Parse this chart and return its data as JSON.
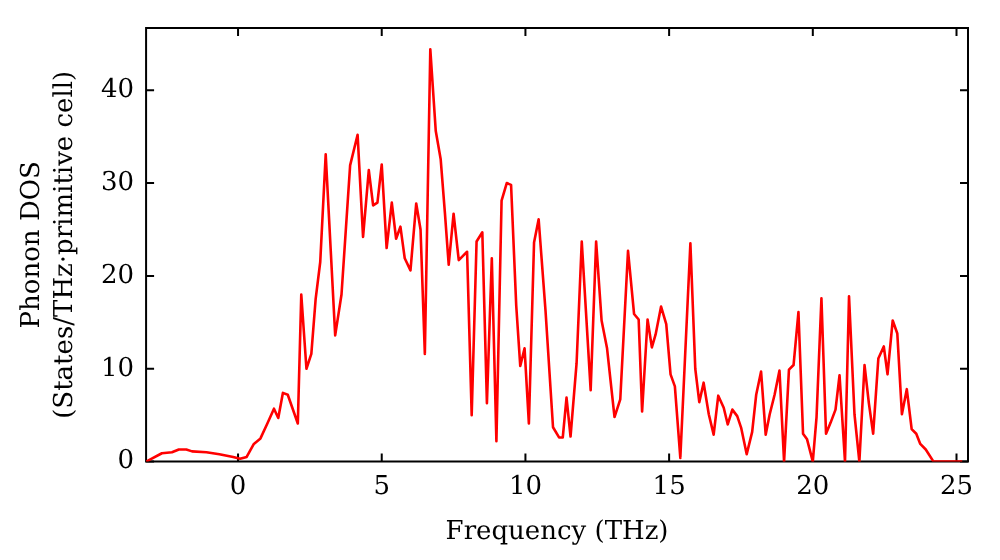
{
  "chart_data": {
    "type": "line",
    "xlabel": "Frequency (THz)",
    "ylabel": "Phonon DOS\n(States/THz·primitive cell)",
    "xlim": [
      -3.2,
      25.4
    ],
    "ylim": [
      0,
      46.7
    ],
    "xticks": [
      0,
      5,
      10,
      15,
      20,
      25
    ],
    "yticks": [
      0,
      10,
      20,
      30,
      40
    ],
    "grid": false,
    "legend": false,
    "marker": "none",
    "line_style": "solid",
    "series": [
      {
        "color": "#ff0000",
        "x": [
          -3.2,
          -2.65,
          -2.3,
          -2.06,
          -1.8,
          -1.6,
          -1.1,
          -0.65,
          -0.17,
          0.07,
          0.3,
          0.55,
          0.78,
          1.02,
          1.25,
          1.4,
          1.56,
          1.73,
          2.08,
          2.2,
          2.38,
          2.55,
          2.7,
          2.86,
          3.05,
          3.38,
          3.6,
          3.9,
          4.16,
          4.35,
          4.55,
          4.7,
          4.85,
          5.0,
          5.17,
          5.35,
          5.5,
          5.65,
          5.8,
          6.0,
          6.2,
          6.35,
          6.5,
          6.69,
          6.88,
          7.05,
          7.2,
          7.33,
          7.5,
          7.68,
          7.97,
          8.13,
          8.3,
          8.5,
          8.66,
          8.83,
          8.99,
          9.17,
          9.35,
          9.5,
          9.68,
          9.82,
          9.97,
          10.12,
          10.3,
          10.46,
          10.7,
          10.96,
          11.17,
          11.3,
          11.43,
          11.57,
          11.78,
          11.96,
          12.27,
          12.46,
          12.65,
          12.84,
          13.1,
          13.3,
          13.57,
          13.78,
          13.94,
          14.06,
          14.25,
          14.4,
          14.53,
          14.72,
          14.9,
          15.05,
          15.2,
          15.39,
          15.74,
          15.91,
          16.05,
          16.2,
          16.38,
          16.55,
          16.71,
          16.9,
          17.04,
          17.2,
          17.37,
          17.51,
          17.7,
          17.89,
          18.03,
          18.2,
          18.36,
          18.5,
          18.67,
          18.84,
          19.0,
          19.17,
          19.33,
          19.5,
          19.66,
          19.8,
          20.0,
          20.13,
          20.3,
          20.46,
          20.62,
          20.79,
          20.93,
          21.12,
          21.26,
          21.45,
          21.62,
          21.8,
          21.95,
          22.1,
          22.28,
          22.47,
          22.6,
          22.78,
          22.94,
          23.1,
          23.27,
          23.44,
          23.6,
          23.74,
          23.93,
          24.2,
          25.2
        ],
        "values": [
          0,
          0.9,
          1,
          1.3,
          1.3,
          1.1,
          1,
          0.8,
          0.5,
          0.3,
          0.5,
          1.9,
          2.5,
          4.1,
          5.7,
          4.7,
          7.4,
          7.2,
          4.1,
          18,
          10,
          11.6,
          17.5,
          21.5,
          33.1,
          13.6,
          18,
          31.9,
          35.2,
          24.2,
          31.4,
          27.6,
          27.9,
          32,
          23,
          27.9,
          24,
          25.3,
          21.9,
          20.6,
          27.8,
          25,
          11.6,
          44.4,
          35.6,
          32.6,
          26.7,
          21.2,
          26.7,
          21.7,
          22.6,
          5,
          23.7,
          24.7,
          6.3,
          21.9,
          2.2,
          28.1,
          30,
          29.8,
          16.8,
          10.3,
          12.2,
          4.1,
          23.6,
          26.1,
          16.2,
          3.7,
          2.6,
          2.6,
          6.9,
          2.7,
          10.6,
          23.7,
          7.7,
          23.7,
          15.2,
          12.2,
          4.8,
          6.7,
          22.7,
          15.9,
          15.3,
          5.4,
          15.3,
          12.3,
          13.7,
          16.7,
          14.8,
          9.4,
          8.1,
          0.4,
          23.5,
          10,
          6.4,
          8.5,
          5.1,
          2.9,
          7.1,
          5.8,
          4,
          5.6,
          4.9,
          3.6,
          0.8,
          3.2,
          7.2,
          9.7,
          2.9,
          5.1,
          7.2,
          9.8,
          0,
          9.9,
          10.4,
          16.1,
          3,
          2.4,
          0,
          4.8,
          17.6,
          3,
          4.2,
          5.6,
          9.3,
          0,
          17.8,
          5.1,
          0,
          10.4,
          6.3,
          3,
          11.1,
          12.4,
          9.4,
          15.2,
          13.8,
          5.1,
          7.8,
          3.5,
          3,
          1.9,
          1.3,
          0,
          0
        ]
      }
    ]
  }
}
